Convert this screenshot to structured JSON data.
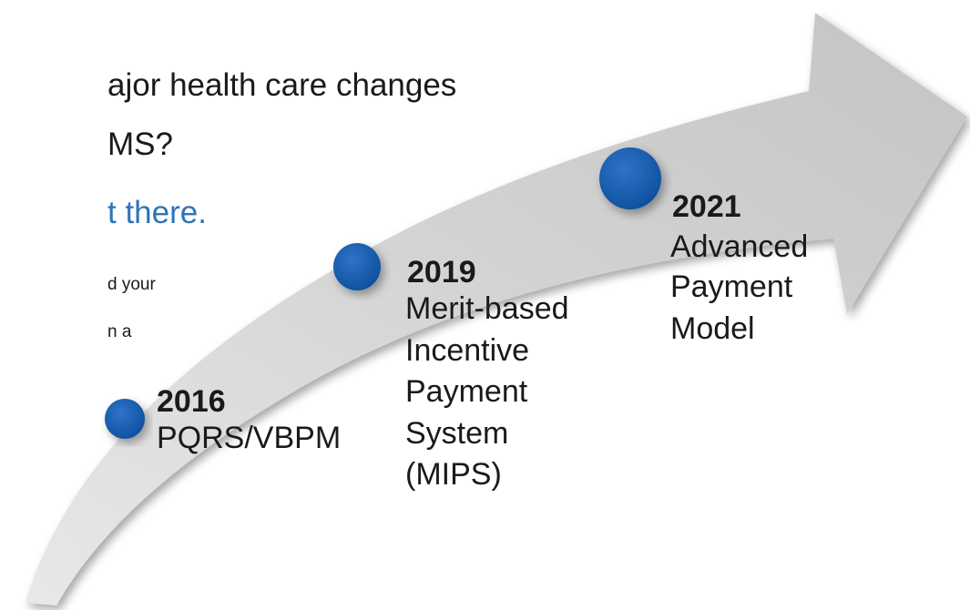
{
  "heading": {
    "lines": [
      "ajor health care changes",
      "MS?"
    ]
  },
  "subheading": "t there.",
  "body": {
    "lines": [
      "d your",
      "n a"
    ]
  },
  "milestones": [
    {
      "year": "2016",
      "lines": [
        "PQRS/VBPM"
      ]
    },
    {
      "year": "2019",
      "lines": [
        "Merit-based",
        "Incentive",
        "Payment",
        "System",
        "(MIPS)"
      ]
    },
    {
      "year": "2021",
      "lines": [
        "Advanced",
        "Payment",
        "Model"
      ]
    }
  ]
}
